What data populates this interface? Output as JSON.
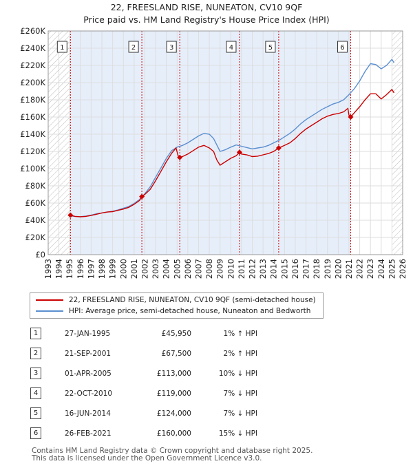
{
  "title": {
    "line1": "22, FREESLAND RISE, NUNEATON, CV10 9QF",
    "line2": "Price paid vs. HM Land Registry's House Price Index (HPI)"
  },
  "chart_data": {
    "type": "line",
    "ylim": [
      0,
      260000
    ],
    "xlim": [
      1993,
      2026
    ],
    "y_ticks": [
      0,
      20000,
      40000,
      60000,
      80000,
      100000,
      120000,
      140000,
      160000,
      180000,
      200000,
      220000,
      240000,
      260000
    ],
    "y_tick_labels": [
      "£0",
      "£20K",
      "£40K",
      "£60K",
      "£80K",
      "£100K",
      "£120K",
      "£140K",
      "£160K",
      "£180K",
      "£200K",
      "£220K",
      "£240K",
      "£260K"
    ],
    "x_ticks": [
      1993,
      1994,
      1995,
      1996,
      1997,
      1998,
      1999,
      2000,
      2001,
      2002,
      2003,
      2004,
      2005,
      2006,
      2007,
      2008,
      2009,
      2010,
      2011,
      2012,
      2013,
      2014,
      2015,
      2016,
      2017,
      2018,
      2019,
      2020,
      2021,
      2022,
      2023,
      2024,
      2025,
      2026
    ],
    "hatch_before": 1995.0,
    "hatch_after": 2025.0,
    "series": [
      {
        "name": "22, FREESLAND RISE, NUNEATON, CV10 9QF (semi-detached house)",
        "color": "#cc0000",
        "points": [
          [
            1995.07,
            45950
          ],
          [
            1995.5,
            44500
          ],
          [
            1996.0,
            44000
          ],
          [
            1996.5,
            44500
          ],
          [
            1997.0,
            45500
          ],
          [
            1997.5,
            47000
          ],
          [
            1998.0,
            48500
          ],
          [
            1998.5,
            49500
          ],
          [
            1999.0,
            50000
          ],
          [
            1999.5,
            51500
          ],
          [
            2000.0,
            53000
          ],
          [
            2000.5,
            55000
          ],
          [
            2001.0,
            58500
          ],
          [
            2001.5,
            63000
          ],
          [
            2001.72,
            67500
          ],
          [
            2002.0,
            70000
          ],
          [
            2002.5,
            76000
          ],
          [
            2003.0,
            86000
          ],
          [
            2003.5,
            97000
          ],
          [
            2004.0,
            108000
          ],
          [
            2004.5,
            118000
          ],
          [
            2004.9,
            124000
          ],
          [
            2005.1,
            115000
          ],
          [
            2005.25,
            113000
          ],
          [
            2005.5,
            114000
          ],
          [
            2006.0,
            117000
          ],
          [
            2006.5,
            121000
          ],
          [
            2007.0,
            125000
          ],
          [
            2007.5,
            127000
          ],
          [
            2008.0,
            124000
          ],
          [
            2008.4,
            120000
          ],
          [
            2008.7,
            110000
          ],
          [
            2009.0,
            104000
          ],
          [
            2009.5,
            108000
          ],
          [
            2010.0,
            112000
          ],
          [
            2010.5,
            115000
          ],
          [
            2010.81,
            119000
          ],
          [
            2011.0,
            117000
          ],
          [
            2011.5,
            116000
          ],
          [
            2012.0,
            114000
          ],
          [
            2012.5,
            114500
          ],
          [
            2013.0,
            116000
          ],
          [
            2013.5,
            117500
          ],
          [
            2014.0,
            120000
          ],
          [
            2014.46,
            124000
          ],
          [
            2015.0,
            127000
          ],
          [
            2015.5,
            130000
          ],
          [
            2016.0,
            135000
          ],
          [
            2016.5,
            141000
          ],
          [
            2017.0,
            146000
          ],
          [
            2017.5,
            150000
          ],
          [
            2018.0,
            154000
          ],
          [
            2018.5,
            158000
          ],
          [
            2019.0,
            161000
          ],
          [
            2019.5,
            163000
          ],
          [
            2020.0,
            164000
          ],
          [
            2020.5,
            166000
          ],
          [
            2020.9,
            170000
          ],
          [
            2021.0,
            162000
          ],
          [
            2021.16,
            160000
          ],
          [
            2021.5,
            165000
          ],
          [
            2022.0,
            172000
          ],
          [
            2022.5,
            180000
          ],
          [
            2023.0,
            187000
          ],
          [
            2023.5,
            187000
          ],
          [
            2024.0,
            181000
          ],
          [
            2024.5,
            186000
          ],
          [
            2025.0,
            192000
          ],
          [
            2025.2,
            188000
          ]
        ]
      },
      {
        "name": "HPI: Average price, semi-detached house, Nuneaton and Bedworth",
        "color": "#5b8fd0",
        "points": [
          [
            1995.0,
            45000
          ],
          [
            1995.5,
            44500
          ],
          [
            1996.0,
            44200
          ],
          [
            1996.5,
            44800
          ],
          [
            1997.0,
            46000
          ],
          [
            1997.5,
            47500
          ],
          [
            1998.0,
            48500
          ],
          [
            1998.5,
            49500
          ],
          [
            1999.0,
            50500
          ],
          [
            1999.5,
            52000
          ],
          [
            2000.0,
            54000
          ],
          [
            2000.5,
            56000
          ],
          [
            2001.0,
            59500
          ],
          [
            2001.5,
            64000
          ],
          [
            2002.0,
            71000
          ],
          [
            2002.5,
            79000
          ],
          [
            2003.0,
            90000
          ],
          [
            2003.5,
            101000
          ],
          [
            2004.0,
            112000
          ],
          [
            2004.5,
            121000
          ],
          [
            2005.0,
            125000
          ],
          [
            2005.5,
            127000
          ],
          [
            2006.0,
            130000
          ],
          [
            2006.5,
            134000
          ],
          [
            2007.0,
            138000
          ],
          [
            2007.5,
            141000
          ],
          [
            2008.0,
            140000
          ],
          [
            2008.4,
            135000
          ],
          [
            2008.8,
            125000
          ],
          [
            2009.0,
            120000
          ],
          [
            2009.5,
            122000
          ],
          [
            2010.0,
            125000
          ],
          [
            2010.5,
            127500
          ],
          [
            2011.0,
            126000
          ],
          [
            2011.5,
            124500
          ],
          [
            2012.0,
            123000
          ],
          [
            2012.5,
            124000
          ],
          [
            2013.0,
            125000
          ],
          [
            2013.5,
            127000
          ],
          [
            2014.0,
            130000
          ],
          [
            2014.5,
            133000
          ],
          [
            2015.0,
            137000
          ],
          [
            2015.5,
            141000
          ],
          [
            2016.0,
            146000
          ],
          [
            2016.5,
            152000
          ],
          [
            2017.0,
            157000
          ],
          [
            2017.5,
            161000
          ],
          [
            2018.0,
            165000
          ],
          [
            2018.5,
            169000
          ],
          [
            2019.0,
            172000
          ],
          [
            2019.5,
            175000
          ],
          [
            2020.0,
            177000
          ],
          [
            2020.5,
            180000
          ],
          [
            2021.0,
            186000
          ],
          [
            2021.5,
            193000
          ],
          [
            2022.0,
            202000
          ],
          [
            2022.5,
            213000
          ],
          [
            2023.0,
            222000
          ],
          [
            2023.5,
            221000
          ],
          [
            2024.0,
            216000
          ],
          [
            2024.5,
            220000
          ],
          [
            2025.0,
            227000
          ],
          [
            2025.2,
            223000
          ]
        ]
      }
    ],
    "sales": [
      {
        "n": "1",
        "x": 1995.07,
        "y": 45950
      },
      {
        "n": "2",
        "x": 2001.72,
        "y": 67500
      },
      {
        "n": "3",
        "x": 2005.25,
        "y": 113000
      },
      {
        "n": "4",
        "x": 2010.81,
        "y": 119000
      },
      {
        "n": "5",
        "x": 2014.46,
        "y": 124000
      },
      {
        "n": "6",
        "x": 2021.16,
        "y": 160000
      }
    ]
  },
  "legend": {
    "property": "22, FREESLAND RISE, NUNEATON, CV10 9QF (semi-detached house)",
    "hpi": "HPI: Average price, semi-detached house, Nuneaton and Bedworth"
  },
  "table": [
    {
      "n": "1",
      "date": "27-JAN-1995",
      "price": "£45,950",
      "hpi": "1% ↑ HPI"
    },
    {
      "n": "2",
      "date": "21-SEP-2001",
      "price": "£67,500",
      "hpi": "2% ↑ HPI"
    },
    {
      "n": "3",
      "date": "01-APR-2005",
      "price": "£113,000",
      "hpi": "10% ↓ HPI"
    },
    {
      "n": "4",
      "date": "22-OCT-2010",
      "price": "£119,000",
      "hpi": "7% ↓ HPI"
    },
    {
      "n": "5",
      "date": "16-JUN-2014",
      "price": "£124,000",
      "hpi": "7% ↓ HPI"
    },
    {
      "n": "6",
      "date": "26-FEB-2021",
      "price": "£160,000",
      "hpi": "15% ↓ HPI"
    }
  ],
  "footer": {
    "line1": "Contains HM Land Registry data © Crown copyright and database right 2025.",
    "line2": "This data is licensed under the Open Government Licence v3.0."
  }
}
